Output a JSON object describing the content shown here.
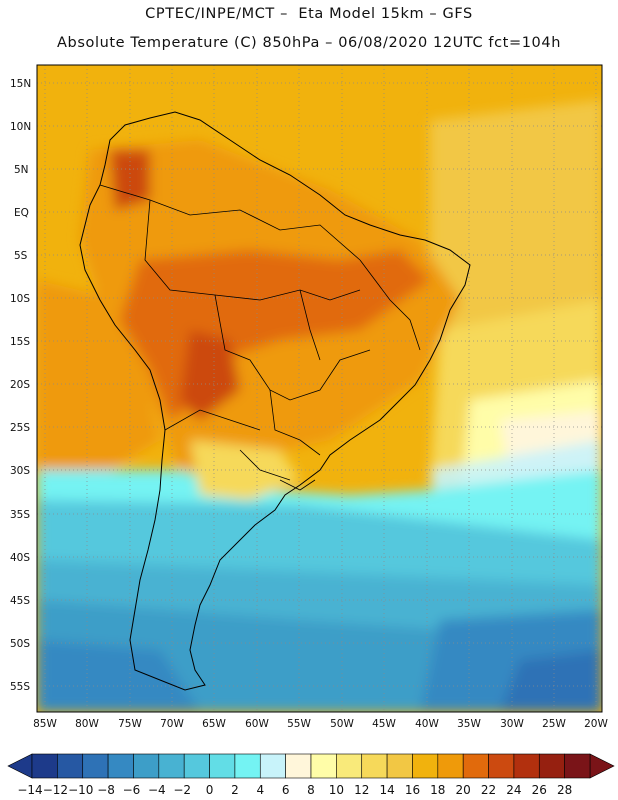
{
  "header": {
    "line1": "CPTEC/INPE/MCT –  Eta Model 15km – GFS",
    "line2": "Absolute Temperature (C) 850hPa – 06/08/2020 12UTC fct=104h"
  },
  "map": {
    "lat_labels": [
      "15N",
      "10N",
      "5N",
      "EQ",
      "5S",
      "10S",
      "15S",
      "20S",
      "25S",
      "30S",
      "35S",
      "40S",
      "45S",
      "50S",
      "55S"
    ],
    "lon_labels": [
      "85W",
      "80W",
      "75W",
      "70W",
      "65W",
      "60W",
      "55W",
      "50W",
      "45W",
      "40W",
      "35W",
      "30W",
      "25W",
      "20W"
    ],
    "region": "South America",
    "variable": "Absolute Temperature 850hPa (C)"
  },
  "colorbar": {
    "labels": [
      "-14",
      "-12",
      "-10",
      "-8",
      "-6",
      "-4",
      "-2",
      "0",
      "2",
      "4",
      "6",
      "8",
      "10",
      "12",
      "14",
      "16",
      "18",
      "20",
      "22",
      "24",
      "26",
      "28"
    ],
    "colors": [
      "#1d3a8a",
      "#2658a3",
      "#2e72b6",
      "#3589c2",
      "#3d9ec8",
      "#48b2d2",
      "#55c8dd",
      "#62dde6",
      "#74f3f3",
      "#c8f3fa",
      "#fff6da",
      "#fffda8",
      "#f9ea7a",
      "#f6d95a",
      "#f2c744",
      "#f1b20d",
      "#ef9a0a",
      "#e16a0c",
      "#cc4a10",
      "#b2300e",
      "#962010",
      "#7a1418"
    ]
  }
}
